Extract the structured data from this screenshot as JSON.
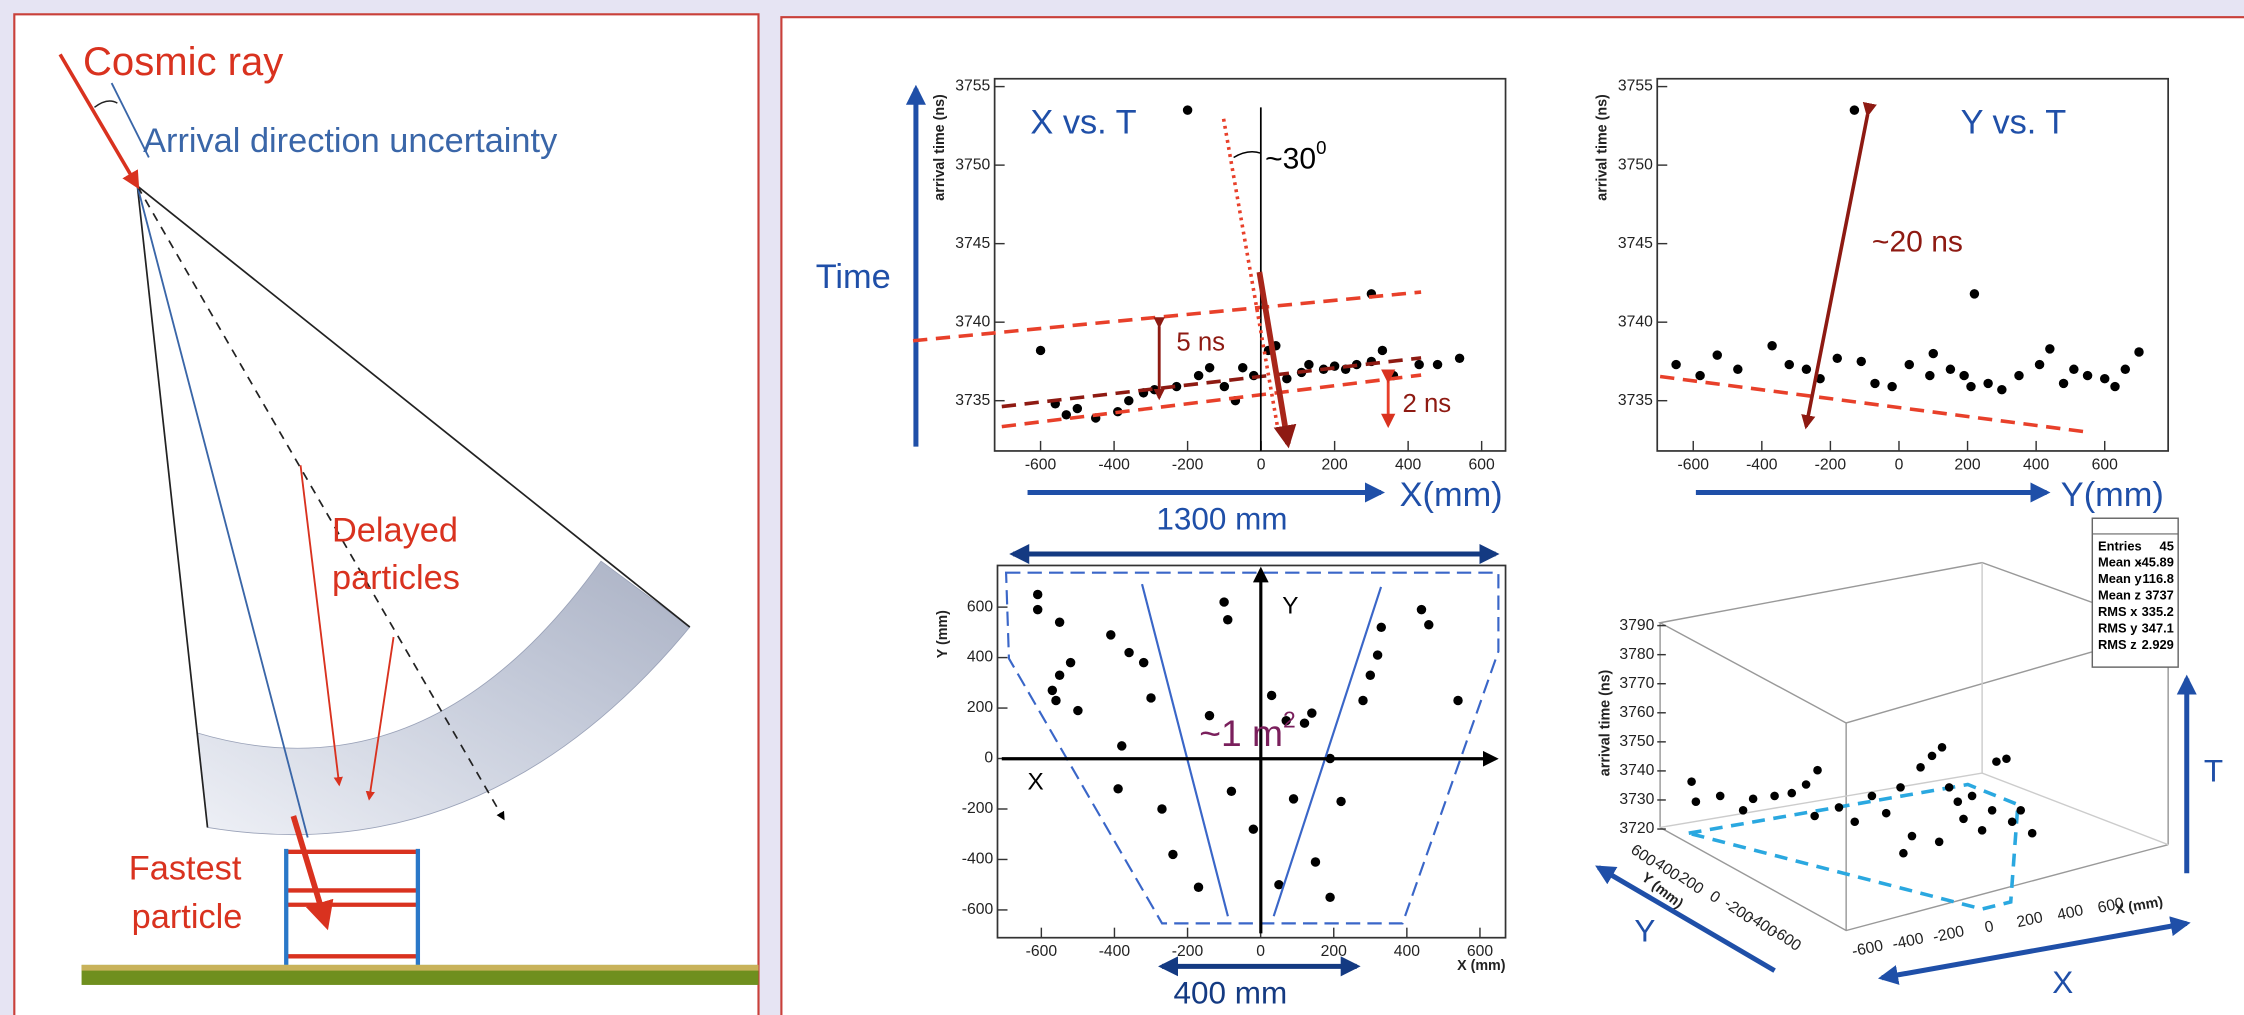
{
  "left_diagram": {
    "cosmic_ray": "Cosmic ray",
    "uncertainty": "Arrival direction uncertainty",
    "delayed": [
      "Delayed",
      "particles"
    ],
    "fastest": [
      "Fastest",
      "particle"
    ]
  },
  "time_label": "Time",
  "plots": [
    {
      "title": "X vs. T",
      "y_label": "arrival time (ns)",
      "x": [
        -200,
        300,
        -600,
        -560,
        -530,
        -500,
        -450,
        -390,
        -360,
        -320,
        -290,
        -230,
        -170,
        -140,
        -100,
        -70,
        -50,
        -20,
        20,
        40,
        70,
        110,
        130,
        170,
        200,
        230,
        260,
        300,
        330,
        360,
        430,
        480,
        540
      ],
      "y": [
        3753.5,
        3741.8,
        3738.2,
        3734.8,
        3734.1,
        3734.5,
        3733.9,
        3734.3,
        3735.0,
        3735.5,
        3735.7,
        3735.9,
        3736.6,
        3737.1,
        3735.9,
        3735.0,
        3737.1,
        3736.6,
        3738.2,
        3738.5,
        3736.4,
        3736.8,
        3737.3,
        3737.0,
        3737.2,
        3737.0,
        3737.3,
        3737.5,
        3738.2,
        3736.6,
        3737.3,
        3737.3,
        3737.7
      ],
      "xlim": [
        -725,
        665
      ],
      "ylim": [
        3731.8,
        3755.5
      ],
      "xticks": [
        -600,
        -400,
        -200,
        0,
        200,
        400,
        600
      ],
      "yticks": [
        3735,
        3740,
        3745,
        3750,
        3755
      ],
      "angle_label": "~30",
      "angle_sup": "0",
      "gap_labels": [
        "5 ns",
        "2 ns"
      ],
      "axis_arrow_label": "X(mm)",
      "width_label": "1300 mm"
    },
    {
      "title": "Y vs. T",
      "y_label": "arrival time (ns)",
      "x": [
        -130,
        220,
        -650,
        -580,
        -530,
        -470,
        -370,
        -320,
        -270,
        -230,
        -180,
        -110,
        -70,
        -20,
        30,
        90,
        100,
        150,
        190,
        210,
        260,
        300,
        350,
        410,
        440,
        480,
        510,
        550,
        600,
        630,
        660,
        700
      ],
      "y": [
        3753.5,
        3741.8,
        3737.3,
        3736.6,
        3737.9,
        3737.0,
        3738.5,
        3737.3,
        3737.0,
        3736.4,
        3737.7,
        3737.5,
        3736.1,
        3735.9,
        3737.3,
        3736.6,
        3738.0,
        3737.0,
        3736.6,
        3735.9,
        3736.1,
        3735.7,
        3736.6,
        3737.3,
        3738.3,
        3736.1,
        3737.0,
        3736.6,
        3736.4,
        3735.9,
        3737.0,
        3738.1
      ],
      "xlim": [
        -705,
        785
      ],
      "ylim": [
        3731.8,
        3755.5
      ],
      "xticks": [
        -600,
        -400,
        -200,
        0,
        200,
        400,
        600
      ],
      "yticks": [
        3735,
        3740,
        3745,
        3750,
        3755
      ],
      "delay_label": "~20 ns",
      "axis_arrow_label": "Y(mm)"
    },
    {
      "x_label": "X (mm)",
      "y_label": "Y (mm)",
      "x": [
        -610,
        -610,
        -550,
        -520,
        -550,
        -570,
        -560,
        -500,
        -410,
        -360,
        -320,
        -300,
        -380,
        -390,
        -270,
        -240,
        -170,
        -140,
        -100,
        -90,
        -80,
        -20,
        30,
        50,
        70,
        90,
        120,
        140,
        190,
        150,
        190,
        220,
        280,
        300,
        320,
        330,
        440,
        460,
        540
      ],
      "y": [
        650,
        590,
        540,
        380,
        330,
        270,
        230,
        190,
        490,
        420,
        380,
        240,
        50,
        -120,
        -200,
        -380,
        -510,
        170,
        620,
        550,
        -130,
        -280,
        250,
        -500,
        150,
        -160,
        140,
        180,
        0,
        -410,
        -550,
        -170,
        230,
        330,
        410,
        520,
        590,
        530,
        230
      ],
      "xlim": [
        -720,
        670
      ],
      "ylim": [
        -710,
        765
      ],
      "xticks": [
        -600,
        -400,
        -200,
        0,
        200,
        400,
        600
      ],
      "yticks": [
        -600,
        -400,
        -200,
        0,
        200,
        400,
        600
      ],
      "axis_x": "X",
      "axis_y": "Y",
      "area_label": "~1 m",
      "area_sup": "2",
      "width_label": "400 mm"
    },
    {
      "z_label": "arrival time (ns)",
      "x_label": "X (mm)",
      "y_label": "Y (mm)",
      "zticks": [
        3790,
        3780,
        3770,
        3760,
        3750,
        3740,
        3730,
        3720
      ],
      "yticks": [
        600,
        400,
        200,
        0,
        -200,
        -400,
        -600
      ],
      "xticks": [
        -600,
        -400,
        -200,
        0,
        200,
        400,
        600
      ],
      "stats": [
        [
          "Entries",
          "45"
        ],
        [
          "Mean x",
          "-45.89"
        ],
        [
          "Mean y",
          "116.8"
        ],
        [
          "Mean z",
          "3737"
        ],
        [
          "RMS x",
          "335.2"
        ],
        [
          "RMS y",
          "347.1"
        ],
        [
          "RMS z",
          "2.929"
        ]
      ],
      "axis_labels": [
        "T",
        "Y",
        "X"
      ]
    }
  ]
}
